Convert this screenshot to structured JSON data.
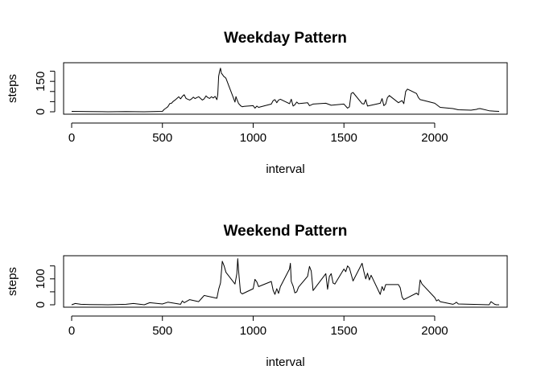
{
  "chart_data": [
    {
      "type": "line",
      "title": "Weekday Pattern",
      "xlabel": "interval",
      "ylabel": "steps",
      "xlim": [
        0,
        2355
      ],
      "ylim": [
        0,
        230
      ],
      "xticks": [
        0,
        500,
        1000,
        1500,
        2000
      ],
      "yticks": [
        0,
        50,
        100,
        150,
        200
      ],
      "ytick_labels": [
        "0",
        "",
        "",
        "150",
        ""
      ],
      "grid": false,
      "series": [
        {
          "color": "#000000",
          "x": [
            0,
            100,
            200,
            300,
            400,
            500,
            510,
            520,
            530,
            540,
            550,
            560,
            570,
            580,
            590,
            600,
            610,
            620,
            630,
            640,
            650,
            660,
            670,
            680,
            690,
            700,
            710,
            720,
            730,
            740,
            750,
            760,
            770,
            780,
            790,
            800,
            805,
            810,
            815,
            820,
            825,
            830,
            835,
            840,
            845,
            850,
            900,
            905,
            910,
            915,
            920,
            925,
            930,
            940,
            950,
            1000,
            1010,
            1020,
            1030,
            1100,
            1110,
            1120,
            1130,
            1140,
            1150,
            1200,
            1210,
            1220,
            1230,
            1240,
            1250,
            1300,
            1310,
            1320,
            1330,
            1400,
            1430,
            1500,
            1520,
            1530,
            1540,
            1550,
            1600,
            1610,
            1620,
            1630,
            1700,
            1710,
            1720,
            1730,
            1740,
            1750,
            1800,
            1820,
            1830,
            1840,
            1850,
            1900,
            1910,
            1920,
            1930,
            2000,
            2030,
            2100,
            2130,
            2200,
            2230,
            2240,
            2250,
            2300,
            2330,
            2355
          ],
          "y": [
            2,
            1,
            0,
            1,
            0,
            2,
            12,
            18,
            25,
            40,
            42,
            52,
            58,
            66,
            74,
            64,
            76,
            84,
            66,
            62,
            58,
            63,
            72,
            65,
            70,
            74,
            66,
            58,
            64,
            78,
            70,
            66,
            74,
            68,
            76,
            60,
            85,
            175,
            200,
            215,
            190,
            185,
            178,
            172,
            170,
            165,
            48,
            75,
            62,
            52,
            40,
            36,
            30,
            25,
            27,
            30,
            18,
            28,
            22,
            38,
            55,
            60,
            45,
            58,
            62,
            40,
            62,
            28,
            35,
            48,
            40,
            45,
            30,
            34,
            38,
            42,
            32,
            38,
            18,
            24,
            90,
            95,
            40,
            38,
            60,
            28,
            42,
            65,
            30,
            38,
            70,
            80,
            45,
            55,
            40,
            100,
            112,
            90,
            70,
            60,
            58,
            42,
            22,
            16,
            10,
            8,
            12,
            15,
            16,
            5,
            3,
            2
          ]
        }
      ]
    },
    {
      "type": "line",
      "title": "Weekend Pattern",
      "xlabel": "interval",
      "ylabel": "steps",
      "xlim": [
        0,
        2355
      ],
      "ylim": [
        0,
        180
      ],
      "xticks": [
        0,
        500,
        1000,
        1500,
        2000
      ],
      "yticks": [
        0,
        50,
        100,
        150
      ],
      "ytick_labels": [
        "0",
        "",
        "100",
        ""
      ],
      "grid": false,
      "series": [
        {
          "color": "#000000",
          "x": [
            0,
            20,
            50,
            100,
            200,
            300,
            340,
            400,
            430,
            500,
            530,
            600,
            610,
            620,
            650,
            700,
            720,
            730,
            800,
            810,
            820,
            830,
            840,
            850,
            900,
            910,
            915,
            920,
            930,
            940,
            1000,
            1010,
            1020,
            1030,
            1100,
            1110,
            1120,
            1130,
            1140,
            1150,
            1200,
            1205,
            1210,
            1220,
            1230,
            1240,
            1250,
            1300,
            1310,
            1320,
            1330,
            1400,
            1410,
            1420,
            1430,
            1440,
            1450,
            1500,
            1510,
            1520,
            1530,
            1540,
            1550,
            1600,
            1610,
            1620,
            1630,
            1640,
            1650,
            1700,
            1710,
            1720,
            1730,
            1800,
            1810,
            1820,
            1830,
            1900,
            1910,
            1920,
            1930,
            2000,
            2010,
            2020,
            2030,
            2100,
            2110,
            2120,
            2130,
            2300,
            2310,
            2330,
            2340,
            2355
          ],
          "y": [
            0,
            5,
            2,
            1,
            0,
            2,
            5,
            0,
            8,
            3,
            10,
            2,
            15,
            8,
            20,
            12,
            28,
            36,
            25,
            60,
            84,
            168,
            150,
            125,
            80,
            120,
            178,
            130,
            48,
            42,
            62,
            98,
            88,
            70,
            90,
            56,
            40,
            62,
            44,
            70,
            138,
            160,
            90,
            72,
            46,
            50,
            68,
            110,
            148,
            130,
            55,
            120,
            60,
            110,
            120,
            84,
            80,
            138,
            128,
            150,
            142,
            118,
            92,
            160,
            128,
            100,
            122,
            96,
            114,
            40,
            70,
            55,
            78,
            78,
            66,
            30,
            20,
            45,
            38,
            96,
            80,
            28,
            15,
            20,
            12,
            2,
            5,
            10,
            3,
            0,
            12,
            2,
            0,
            0
          ]
        }
      ]
    }
  ]
}
